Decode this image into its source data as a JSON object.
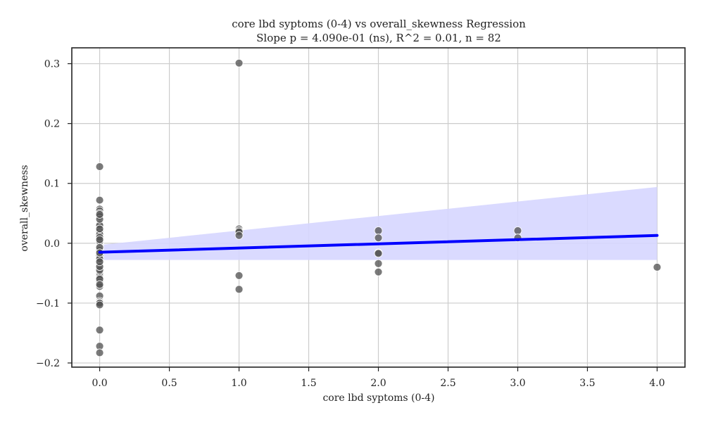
{
  "chart_data": {
    "type": "scatter",
    "title": "core lbd syptoms (0-4) vs overall_skewness Regression",
    "subtitle": "Slope p = 4.090e-01 (ns), R^2 = 0.01, n = 82",
    "xlabel": "core lbd syptoms (0-4)",
    "ylabel": "overall_skewness",
    "xlim": [
      -0.2,
      4.2
    ],
    "ylim": [
      -0.207,
      0.3265
    ],
    "xticks": [
      0.0,
      0.5,
      1.0,
      1.5,
      2.0,
      2.5,
      3.0,
      3.5,
      4.0
    ],
    "xtick_labels": [
      "0.0",
      "0.5",
      "1.0",
      "1.5",
      "2.0",
      "2.5",
      "3.0",
      "3.5",
      "4.0"
    ],
    "yticks": [
      -0.2,
      -0.1,
      0.0,
      0.1,
      0.2,
      0.3
    ],
    "ytick_labels": [
      "−0.2",
      "−0.1",
      "0.0",
      "0.1",
      "0.2",
      "0.3"
    ],
    "grid": true,
    "points_x": [
      0,
      0,
      0,
      0,
      0,
      0,
      0,
      0,
      0,
      0,
      0,
      0,
      0,
      0,
      0,
      0,
      0,
      0,
      0,
      0,
      0,
      0,
      0,
      0,
      0,
      0,
      0,
      0,
      0,
      0,
      0,
      0,
      0,
      0,
      0,
      0,
      0,
      0,
      0,
      0,
      0,
      0,
      0,
      0,
      0,
      0,
      0,
      0,
      0,
      0,
      0,
      0,
      0,
      0,
      0,
      0,
      0,
      0,
      0,
      0,
      0,
      0,
      0,
      0,
      0,
      0,
      1,
      1,
      1,
      1,
      1,
      1,
      1,
      2,
      2,
      2,
      2,
      2,
      2,
      3,
      3,
      4
    ],
    "points_y": [
      0.128,
      0.072,
      0.057,
      0.054,
      0.05,
      0.045,
      0.032,
      0.028,
      0.025,
      0.022,
      0.018,
      0.012,
      0.008,
      0.005,
      0.002,
      -0.002,
      -0.005,
      -0.008,
      -0.01,
      -0.012,
      -0.015,
      -0.018,
      -0.02,
      -0.022,
      -0.025,
      -0.028,
      -0.03,
      -0.033,
      -0.036,
      -0.04,
      -0.043,
      -0.045,
      -0.048,
      -0.05,
      -0.052,
      -0.055,
      -0.058,
      -0.065,
      -0.072,
      -0.088,
      -0.097,
      -0.099,
      -0.1,
      -0.103,
      -0.145,
      -0.172,
      -0.183,
      0.02,
      0.015,
      0.003,
      -0.045,
      -0.06,
      -0.012,
      0.03,
      -0.021,
      -0.039,
      0.01,
      -0.026,
      0.04,
      -0.007,
      0.048,
      -0.031,
      -0.069,
      0.024,
      -0.016,
      0.006,
      0.301,
      0.024,
      0.021,
      0.019,
      0.013,
      -0.054,
      -0.077,
      0.021,
      0.009,
      -0.016,
      -0.034,
      -0.048,
      -0.017,
      0.021,
      0.009,
      -0.04
    ],
    "regression": {
      "x": [
        0,
        4
      ],
      "y": [
        -0.015,
        0.013
      ]
    },
    "confidence_band": {
      "x": [
        0,
        4
      ],
      "upper": [
        -0.003,
        0.094
      ],
      "lower": [
        -0.028,
        -0.028
      ]
    },
    "colors": {
      "points": "#555555",
      "line": "#0000ff",
      "band": "#d6d6ff",
      "grid": "#cccccc",
      "axes": "#222222"
    }
  }
}
